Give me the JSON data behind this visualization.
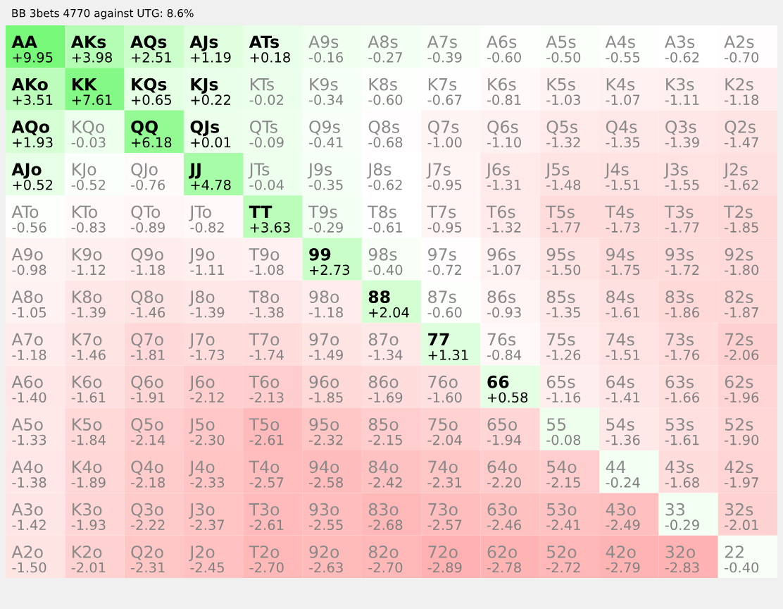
{
  "chart_data": {
    "type": "heatmap",
    "title": "BB 3bets 4770 against UTG: 8.6%",
    "categories": [
      null,
      null,
      null,
      null,
      null,
      null,
      null,
      null,
      null,
      null,
      null,
      null,
      null
    ],
    "y_categories": [
      null,
      null,
      null,
      null,
      null,
      null,
      null,
      null,
      null,
      null,
      null,
      null,
      null
    ],
    "cells": [
      [
        9.95,
        3.98,
        2.51,
        1.19,
        0.18,
        -0.16,
        -0.27,
        -0.39,
        -0.6,
        -0.5,
        -0.55,
        -0.62,
        -0.7
      ],
      [
        3.51,
        7.61,
        0.65,
        0.22,
        -0.02,
        -0.34,
        -0.6,
        -0.67,
        -0.81,
        -1.03,
        -1.07,
        -1.11,
        -1.18
      ],
      [
        1.93,
        -0.03,
        6.18,
        0.01,
        -0.09,
        -0.41,
        -0.68,
        -1.0,
        -1.1,
        -1.32,
        -1.35,
        -1.39,
        -1.47
      ],
      [
        0.52,
        -0.52,
        -0.76,
        4.78,
        -0.04,
        -0.35,
        -0.62,
        -0.95,
        -1.31,
        -1.48,
        -1.51,
        -1.55,
        -1.62
      ],
      [
        -0.56,
        -0.83,
        -0.89,
        -0.82,
        3.63,
        -0.29,
        -0.61,
        -0.95,
        -1.32,
        -1.77,
        -1.73,
        -1.77,
        -1.85
      ],
      [
        -0.98,
        -1.12,
        -1.18,
        -1.11,
        -1.08,
        2.73,
        -0.4,
        -0.72,
        -1.07,
        -1.5,
        -1.75,
        -1.72,
        -1.8
      ],
      [
        -1.05,
        -1.39,
        -1.46,
        -1.39,
        -1.38,
        -1.18,
        2.04,
        -0.6,
        -0.93,
        -1.35,
        -1.61,
        -1.86,
        -1.87
      ],
      [
        -1.18,
        -1.46,
        -1.81,
        -1.73,
        -1.74,
        -1.49,
        -1.34,
        1.31,
        -0.84,
        -1.26,
        -1.51,
        -1.76,
        -2.06
      ],
      [
        -1.4,
        -1.61,
        -1.91,
        -2.12,
        -2.13,
        -1.85,
        -1.69,
        -1.6,
        0.58,
        -1.16,
        -1.41,
        -1.66,
        -1.96
      ],
      [
        -1.33,
        -1.84,
        -2.14,
        -2.3,
        -2.61,
        -2.32,
        -2.15,
        -2.04,
        -1.94,
        -0.08,
        -1.36,
        -1.61,
        -1.9
      ],
      [
        -1.38,
        -1.89,
        -2.18,
        -2.33,
        -2.57,
        -2.58,
        -2.42,
        -2.31,
        -2.2,
        -2.15,
        -0.24,
        -1.68,
        -1.97
      ],
      [
        -1.42,
        -1.93,
        -2.22,
        -2.37,
        -2.61,
        -2.55,
        -2.68,
        -2.57,
        -2.46,
        -2.41,
        -2.49,
        -0.29,
        -2.01
      ],
      [
        -1.5,
        -2.01,
        -2.31,
        -2.45,
        -2.7,
        -2.63,
        -2.7,
        -2.89,
        -2.78,
        -2.72,
        -2.79,
        -2.83,
        -0.4
      ]
    ],
    "cell_labels": [
      [
        "+9.95",
        "+3.98",
        "+2.51",
        "+1.19",
        "+0.18",
        "-0.16",
        "-0.27",
        "-0.39",
        "-0.60",
        "-0.50",
        "-0.55",
        "-0.62",
        "-0.70"
      ],
      [
        "+3.51",
        "+7.61",
        "+0.65",
        "+0.22",
        "-0.02",
        "-0.34",
        "-0.60",
        "-0.67",
        "-0.81",
        "-1.03",
        "-1.07",
        "-1.11",
        "-1.18"
      ],
      [
        "+1.93",
        "-0.03",
        "+6.18",
        "+0.01",
        "-0.09",
        "-0.41",
        "-0.68",
        "-1.00",
        "-1.10",
        "-1.32",
        "-1.35",
        "-1.39",
        "-1.47"
      ],
      [
        "+0.52",
        "-0.52",
        "-0.76",
        "+4.78",
        "-0.04",
        "-0.35",
        "-0.62",
        "-0.95",
        "-1.31",
        "-1.48",
        "-1.51",
        "-1.55",
        "-1.62"
      ],
      [
        "-0.56",
        "-0.83",
        "-0.89",
        "-0.82",
        "+3.63",
        "-0.29",
        "-0.61",
        "-0.95",
        "-1.32",
        "-1.77",
        "-1.73",
        "-1.77",
        "-1.85"
      ],
      [
        "-0.98",
        "-1.12",
        "-1.18",
        "-1.11",
        "-1.08",
        "+2.73",
        "-0.40",
        "-0.72",
        "-1.07",
        "-1.50",
        "-1.75",
        "-1.72",
        "-1.80"
      ],
      [
        "-1.05",
        "-1.39",
        "-1.46",
        "-1.39",
        "-1.38",
        "-1.18",
        "+2.04",
        "-0.60",
        "-0.93",
        "-1.35",
        "-1.61",
        "-1.86",
        "-1.87"
      ],
      [
        "-1.18",
        "-1.46",
        "-1.81",
        "-1.73",
        "-1.74",
        "-1.49",
        "-1.34",
        "+1.31",
        "-0.84",
        "-1.26",
        "-1.51",
        "-1.76",
        "-2.06"
      ],
      [
        "-1.40",
        "-1.61",
        "-1.91",
        "-2.12",
        "-2.13",
        "-1.85",
        "-1.69",
        "-1.60",
        "+0.58",
        "-1.16",
        "-1.41",
        "-1.66",
        "-1.96"
      ],
      [
        "-1.33",
        "-1.84",
        "-2.14",
        "-2.30",
        "-2.61",
        "-2.32",
        "-2.15",
        "-2.04",
        "-1.94",
        "-0.08",
        "-1.36",
        "-1.61",
        "-1.90"
      ],
      [
        "-1.38",
        "-1.89",
        "-2.18",
        "-2.33",
        "-2.57",
        "-2.58",
        "-2.42",
        "-2.31",
        "-2.20",
        "-2.15",
        "-0.24",
        "-1.68",
        "-1.97"
      ],
      [
        "-1.42",
        "-1.93",
        "-2.22",
        "-2.37",
        "-2.61",
        "-2.55",
        "-2.68",
        "-2.57",
        "-2.46",
        "-2.41",
        "-2.49",
        "-0.29",
        "-2.01"
      ],
      [
        "-1.50",
        "-2.01",
        "-2.31",
        "-2.45",
        "-2.70",
        "-2.63",
        "-2.70",
        "-2.89",
        "-2.78",
        "-2.72",
        "-2.79",
        "-2.83",
        "-0.40"
      ]
    ],
    "annotations": [
      "AA",
      "AKs",
      "AQs",
      "AJs",
      "ATs",
      "A9s",
      "A8s",
      "A7s",
      "A6s",
      "A5s",
      "A4s",
      "A3s",
      "A2s",
      "AKo",
      "KK",
      "KQs",
      "KJs",
      "KTs",
      "K9s",
      "K8s",
      "K7s",
      "K6s",
      "K5s",
      "K4s",
      "K3s",
      "K2s",
      "AQo",
      "KQo",
      "QQ",
      "QJs",
      "QTs",
      "Q9s",
      "Q8s",
      "Q7s",
      "Q6s",
      "Q5s",
      "Q4s",
      "Q3s",
      "Q2s",
      "AJo",
      "KJo",
      "QJo",
      "JJ",
      "JTs",
      "J9s",
      "J8s",
      "J7s",
      "J6s",
      "J5s",
      "J4s",
      "J3s",
      "J2s",
      "ATo",
      "KTo",
      "QTo",
      "JTo",
      "TT",
      "T9s",
      "T8s",
      "T7s",
      "T6s",
      "T5s",
      "T4s",
      "T3s",
      "T2s",
      "A9o",
      "K9o",
      "Q9o",
      "J9o",
      "T9o",
      "99",
      "98s",
      "97s",
      "96s",
      "95s",
      "94s",
      "93s",
      "92s",
      "A8o",
      "K8o",
      "Q8o",
      "J8o",
      "T8o",
      "98o",
      "88",
      "87s",
      "86s",
      "85s",
      "84s",
      "83s",
      "82s",
      "A7o",
      "K7o",
      "Q7o",
      "J7o",
      "T7o",
      "97o",
      "87o",
      "77",
      "76s",
      "75s",
      "74s",
      "73s",
      "72s",
      "A6o",
      "K6o",
      "Q6o",
      "J6o",
      "T6o",
      "96o",
      "86o",
      "76o",
      "66",
      "65s",
      "64s",
      "63s",
      "62s",
      "A5o",
      "K5o",
      "Q5o",
      "J5o",
      "T5o",
      "95o",
      "85o",
      "75o",
      "65o",
      "55",
      "54s",
      "53s",
      "52s",
      "A4o",
      "K4o",
      "Q4o",
      "J4o",
      "T4o",
      "94o",
      "84o",
      "74o",
      "64o",
      "54o",
      "44",
      "43s",
      "42s",
      "A3o",
      "K3o",
      "Q3o",
      "J3o",
      "T3o",
      "93o",
      "83o",
      "73o",
      "63o",
      "53o",
      "43o",
      "33",
      "32s",
      "A2o",
      "K2o",
      "Q2o",
      "J2o",
      "T2o",
      "92o",
      "82o",
      "72o",
      "62o",
      "52o",
      "42o",
      "32o",
      "22"
    ]
  }
}
